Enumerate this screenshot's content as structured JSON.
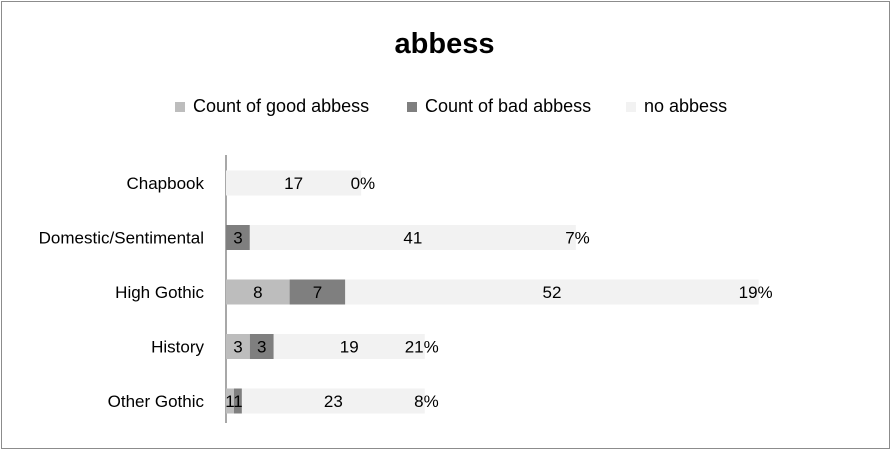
{
  "chart_data": {
    "type": "bar",
    "orientation": "horizontal",
    "stacked": true,
    "title": "abbess",
    "legend_position": "top",
    "categories": [
      "Chapbook",
      "Domestic/Sentimental",
      "High Gothic",
      "History",
      "Other Gothic"
    ],
    "series": [
      {
        "name": "Count of good abbess",
        "values": [
          0,
          0,
          8,
          3,
          1
        ],
        "color": "#bdbdbd"
      },
      {
        "name": "Count of bad abbess",
        "values": [
          0,
          3,
          7,
          3,
          1
        ],
        "color": "#7f7f7f"
      },
      {
        "name": "no abbess",
        "values": [
          17,
          41,
          52,
          19,
          23
        ],
        "color": "#f2f2f2"
      }
    ],
    "percent_labels": [
      "0%",
      "7%",
      "19%",
      "21%",
      "8%"
    ],
    "grid": false
  }
}
